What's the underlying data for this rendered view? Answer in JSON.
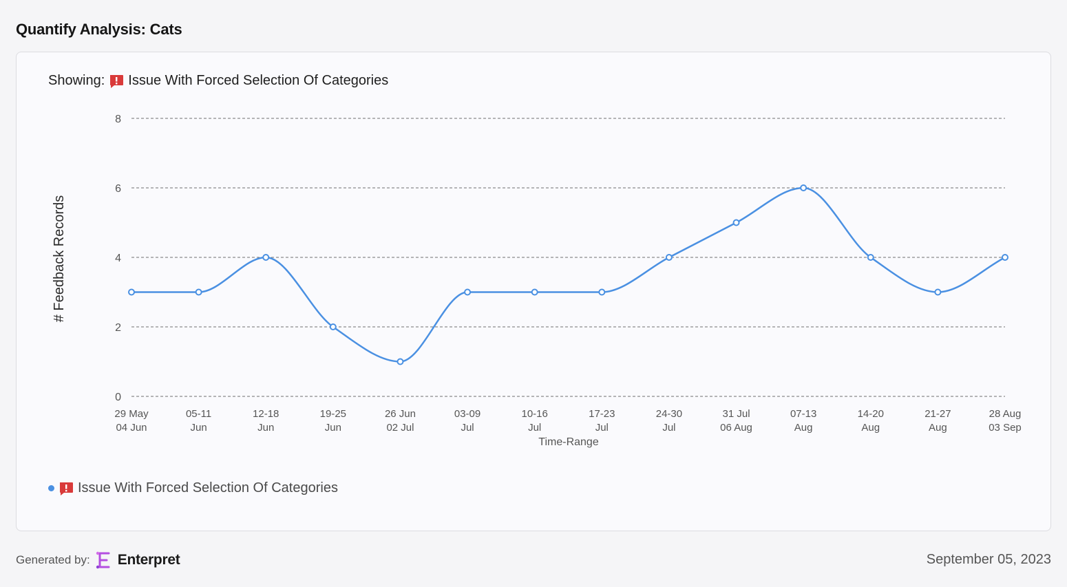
{
  "page": {
    "title": "Quantify Analysis: Cats"
  },
  "showing": {
    "prefix": "Showing:",
    "label": "Issue With Forced Selection Of Categories"
  },
  "chart_data": {
    "type": "line",
    "xlabel": "Time-Range",
    "ylabel": "# Feedback Records",
    "ylim": [
      0,
      8
    ],
    "yticks": [
      0,
      2,
      4,
      6,
      8
    ],
    "grid": true,
    "categories": [
      [
        "29 May",
        "04 Jun"
      ],
      [
        "05-11",
        "Jun"
      ],
      [
        "12-18",
        "Jun"
      ],
      [
        "19-25",
        "Jun"
      ],
      [
        "26 Jun",
        "02 Jul"
      ],
      [
        "03-09",
        "Jul"
      ],
      [
        "10-16",
        "Jul"
      ],
      [
        "17-23",
        "Jul"
      ],
      [
        "24-30",
        "Jul"
      ],
      [
        "31 Jul",
        "06 Aug"
      ],
      [
        "07-13",
        "Aug"
      ],
      [
        "14-20",
        "Aug"
      ],
      [
        "21-27",
        "Aug"
      ],
      [
        "28 Aug",
        "03 Sep"
      ]
    ],
    "series": [
      {
        "name": "Issue With Forced Selection Of Categories",
        "color": "#4a90e2",
        "values": [
          3,
          3,
          4,
          2,
          1,
          3,
          3,
          3,
          4,
          5,
          6,
          4,
          3,
          4
        ]
      }
    ],
    "legend": "bottom-left"
  },
  "legend": {
    "label": "Issue With Forced Selection Of Categories"
  },
  "footer": {
    "generated_label": "Generated by:",
    "brand": "Enterpret",
    "date": "September 05, 2023"
  },
  "colors": {
    "accent": "#4a90e2",
    "alert": "#d93a3a",
    "brand": "#b44fe0"
  },
  "icons": {
    "issue": "alert-speech-bubble-icon",
    "brand": "enterpret-logo-icon"
  }
}
